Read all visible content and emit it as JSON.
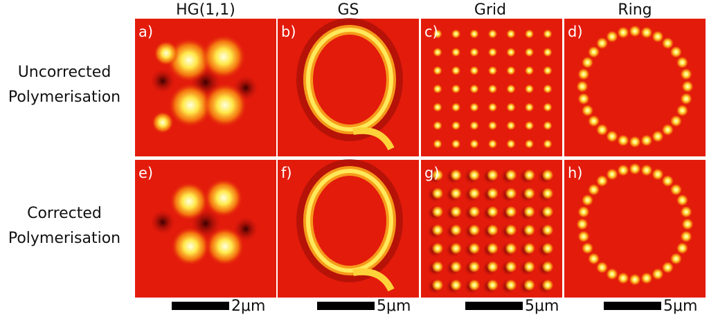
{
  "columns": [
    "HG(1,1)",
    "GS",
    "Grid",
    "Ring"
  ],
  "rows": [
    {
      "label": [
        "Uncorrected",
        "Polymerisation"
      ]
    },
    {
      "label": [
        "Corrected",
        "Polymerisation"
      ]
    }
  ],
  "panels": [
    [
      "a)",
      "b)",
      "c)",
      "d)"
    ],
    [
      "e)",
      "f)",
      "g)",
      "h)"
    ]
  ],
  "scale_bars": [
    "2μm",
    "5μm",
    "5μm",
    "5μm"
  ]
}
